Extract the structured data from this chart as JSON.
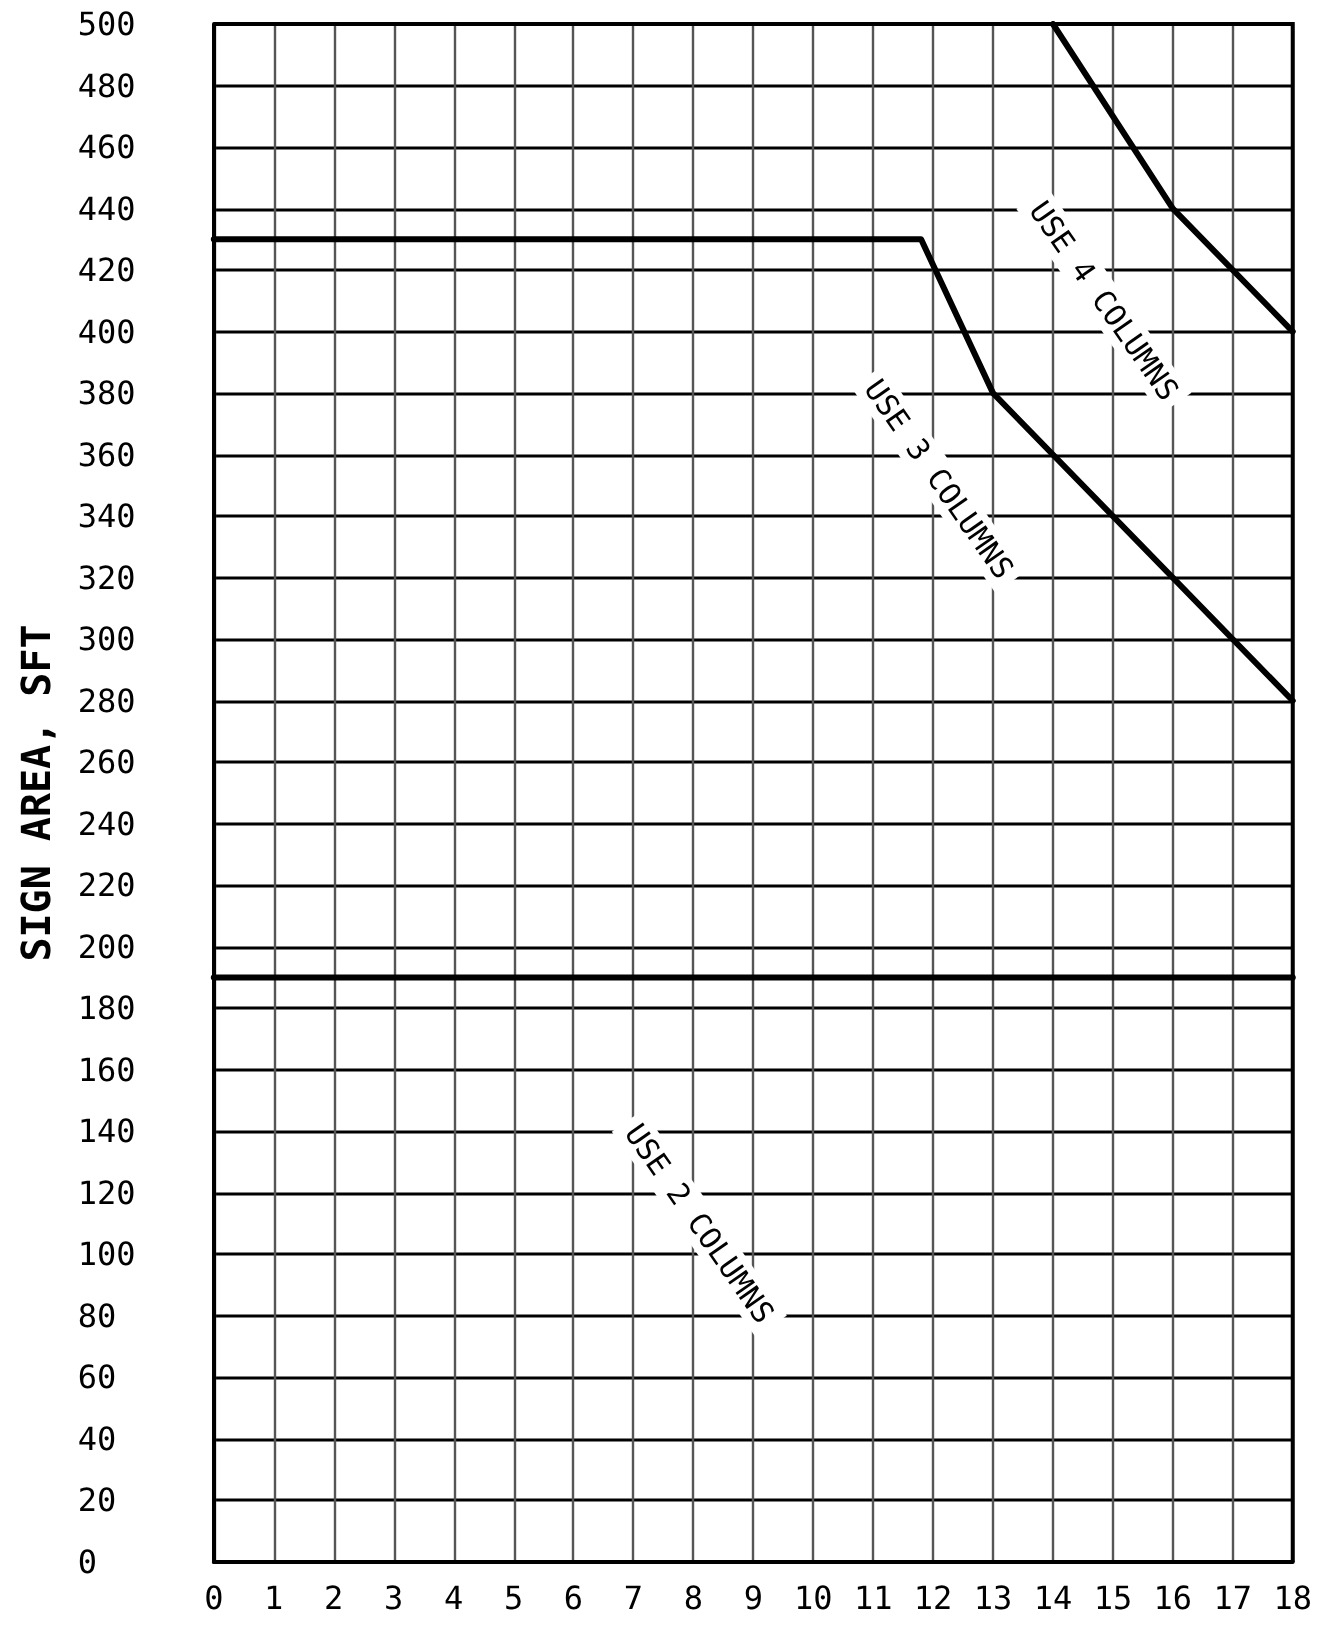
{
  "chart_data": {
    "type": "line",
    "ylabel": "SIGN AREA, SFT",
    "xlim": [
      0,
      18
    ],
    "xticks": [
      0,
      1,
      2,
      3,
      4,
      5,
      6,
      7,
      8,
      9,
      10,
      11,
      12,
      13,
      14,
      15,
      16,
      17,
      18
    ],
    "ylim": [
      0,
      500
    ],
    "yticks": [
      0,
      20,
      40,
      60,
      80,
      100,
      120,
      140,
      160,
      180,
      200,
      220,
      240,
      260,
      280,
      300,
      320,
      340,
      360,
      380,
      400,
      420,
      440,
      460,
      480,
      500
    ],
    "grid": true,
    "marker": "none",
    "line_style": "solid",
    "series": [
      {
        "color": "#000000",
        "x": [
          0,
          18
        ],
        "values": [
          190,
          190
        ]
      },
      {
        "color": "#000000",
        "x": [
          0,
          11.8,
          13,
          18
        ],
        "values": [
          430,
          430,
          380,
          280
        ]
      },
      {
        "color": "#000000",
        "x": [
          14,
          16,
          18
        ],
        "values": [
          500,
          440,
          400
        ]
      }
    ],
    "annotations": [
      "USE 2 COLUMNS",
      "USE 3 COLUMNS",
      "USE 4 COLUMNS"
    ]
  }
}
